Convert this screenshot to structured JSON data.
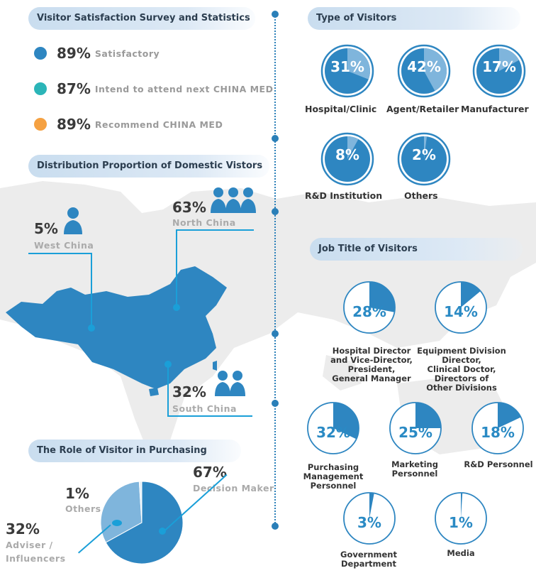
{
  "satisfaction": {
    "title": "Visitor Satisfaction Survey and Statistics",
    "items": [
      {
        "pct": "89%",
        "label": "Satisfactory",
        "color": "#2e86c1"
      },
      {
        "pct": "87%",
        "label": "Intend to attend next CHINA MED",
        "color": "#2bb5b8"
      },
      {
        "pct": "89%",
        "label": "Recommend CHINA MED",
        "color": "#f5a142"
      }
    ]
  },
  "visitor_types": {
    "title": "Type of Visitors",
    "items": [
      {
        "pct": "31%",
        "label": "Hospital/Clinic",
        "value": 31
      },
      {
        "pct": "42%",
        "label": "Agent/Retailer",
        "value": 42
      },
      {
        "pct": "17%",
        "label": "Manufacturer",
        "value": 17
      },
      {
        "pct": "8%",
        "label": "R&D Institution",
        "value": 8
      },
      {
        "pct": "2%",
        "label": "Others",
        "value": 2
      }
    ]
  },
  "domestic": {
    "title": "Distribution Proportion of Domestic Vistors",
    "regions": [
      {
        "pct": "5%",
        "label": "West China"
      },
      {
        "pct": "63%",
        "label": "North China"
      },
      {
        "pct": "32%",
        "label": "South China"
      }
    ]
  },
  "job_titles": {
    "title": "Job Title of Visitors",
    "items": [
      {
        "pct": "28%",
        "value": 28,
        "label": "Hospital Director\nand Vice-Director,\nPresident,\nGeneral Manager"
      },
      {
        "pct": "14%",
        "value": 14,
        "label": "Equipment Division\nDirector,\nClinical Doctor,\nDirectors of\nOther Divisions"
      },
      {
        "pct": "32%",
        "value": 32,
        "label": "Purchasing\nManagement\nPersonnel"
      },
      {
        "pct": "25%",
        "value": 25,
        "label": "Marketing\nPersonnel"
      },
      {
        "pct": "18%",
        "value": 18,
        "label": "R&D Personnel"
      },
      {
        "pct": "3%",
        "value": 3,
        "label": "Government\nDepartment"
      },
      {
        "pct": "1%",
        "value": 1,
        "label": "Media"
      }
    ]
  },
  "purchasing_role": {
    "title": "The Role of Visitor in Purchasing",
    "slices": [
      {
        "pct": "67%",
        "label": "Decision Maker",
        "value": 67,
        "color": "#2e86c1"
      },
      {
        "pct": "32%",
        "label": "Adviser / Influencers",
        "value": 32,
        "color": "#7fb5dc"
      },
      {
        "pct": "1%",
        "label": "Others",
        "value": 1,
        "color": "#e6f0f8"
      }
    ]
  },
  "colors": {
    "accent": "#2e86c1",
    "leader": "#1a9fd8",
    "map": "#2e86c1",
    "worldmap": "#ececec"
  },
  "chart_data": [
    {
      "type": "pie",
      "title": "Type of Visitors",
      "categories": [
        "Hospital/Clinic",
        "Agent/Retailer",
        "Manufacturer",
        "R&D Institution",
        "Others"
      ],
      "values": [
        31,
        42,
        17,
        8,
        2
      ]
    },
    {
      "type": "pie",
      "title": "Job Title of Visitors",
      "categories": [
        "Hospital Director and Vice-Director, President, General Manager",
        "Equipment Division Director, Clinical Doctor, Directors of Other Divisions",
        "Purchasing Management Personnel",
        "Marketing Personnel",
        "R&D Personnel",
        "Government Department",
        "Media"
      ],
      "values": [
        28,
        14,
        32,
        25,
        18,
        3,
        1
      ]
    },
    {
      "type": "pie",
      "title": "The Role of Visitor in Purchasing",
      "categories": [
        "Decision Maker",
        "Adviser / Influencers",
        "Others"
      ],
      "values": [
        67,
        32,
        1
      ]
    },
    {
      "type": "bar",
      "title": "Visitor Satisfaction Survey and Statistics",
      "categories": [
        "Satisfactory",
        "Intend to attend next CHINA MED",
        "Recommend CHINA MED"
      ],
      "values": [
        89,
        87,
        89
      ]
    },
    {
      "type": "pie",
      "title": "Distribution Proportion of Domestic Vistors",
      "categories": [
        "West China",
        "North China",
        "South China"
      ],
      "values": [
        5,
        63,
        32
      ]
    }
  ]
}
